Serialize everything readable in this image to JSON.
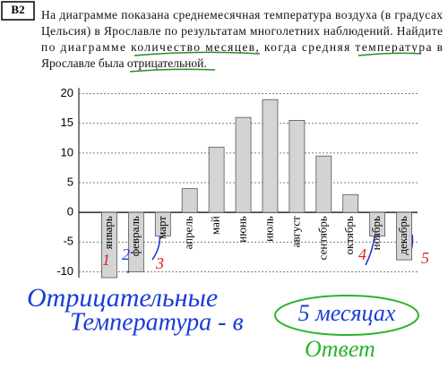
{
  "task_label": "B2",
  "problem_lines": [
    "На диаграмме показана среднемесячная температура воздуха (в градусах",
    "Цельсия) в Ярославле по результатам многолетних наблюдений. Найдите",
    "по диаграмме количество месяцев, когда средняя температура в",
    "Ярославле была отрицательной."
  ],
  "chart_data": {
    "type": "bar",
    "categories": [
      "январь",
      "февраль",
      "март",
      "апрель",
      "май",
      "июнь",
      "июль",
      "август",
      "сентябрь",
      "октябрь",
      "ноябрь",
      "декабрь"
    ],
    "values": [
      -11,
      -10,
      -4,
      4,
      11,
      16,
      19,
      15.5,
      9.5,
      3,
      -4,
      -8
    ],
    "color": "#d4d4d4",
    "ylim": [
      -11,
      21
    ],
    "yticks": [
      -10,
      -5,
      0,
      5,
      10,
      15,
      20
    ],
    "grid": true
  },
  "annotations": {
    "numbers": [
      "1",
      "2",
      "3",
      "4",
      "5"
    ],
    "line1": "Отрицательные",
    "line2": "Температура - в",
    "answer": "5 месяцах",
    "answer_caption": "Ответ"
  }
}
